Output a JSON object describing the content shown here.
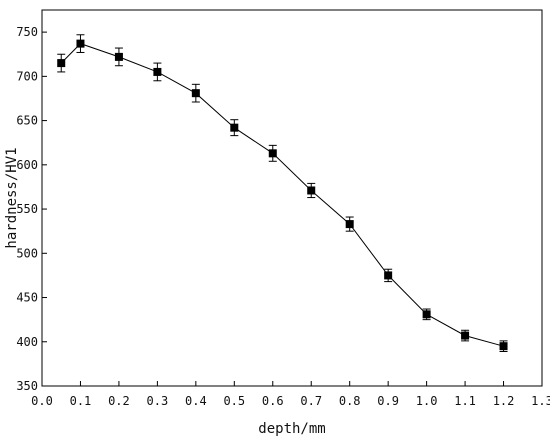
{
  "chart_data": {
    "type": "line",
    "title": "",
    "xlabel": "depth/mm",
    "ylabel": "hardness/HV1",
    "xlim": [
      0.0,
      1.3
    ],
    "ylim": [
      350,
      775
    ],
    "xticks": [
      0.0,
      0.1,
      0.2,
      0.3,
      0.4,
      0.5,
      0.6,
      0.7,
      0.8,
      0.9,
      1.0,
      1.1,
      1.2,
      1.3
    ],
    "xtick_labels": [
      "0.0",
      "0.1",
      "0.2",
      "0.3",
      "0.4",
      "0.5",
      "0.6",
      "0.7",
      "0.8",
      "0.9",
      "1.0",
      "1.1",
      "1.2",
      "1.3"
    ],
    "yticks": [
      350,
      400,
      450,
      500,
      550,
      600,
      650,
      700,
      750
    ],
    "ytick_labels": [
      "350",
      "400",
      "450",
      "500",
      "550",
      "600",
      "650",
      "700",
      "750"
    ],
    "grid": false,
    "legend": "none",
    "series": [
      {
        "marker": "square",
        "color": "#000000",
        "x": [
          0.05,
          0.1,
          0.2,
          0.3,
          0.4,
          0.5,
          0.6,
          0.7,
          0.8,
          0.9,
          1.0,
          1.1,
          1.2
        ],
        "y": [
          715,
          737,
          722,
          705,
          681,
          642,
          613,
          571,
          533,
          475,
          431,
          407,
          395
        ],
        "error": [
          10,
          10,
          10,
          10,
          10,
          9,
          9,
          8,
          8,
          7,
          6,
          6,
          6
        ]
      }
    ]
  }
}
